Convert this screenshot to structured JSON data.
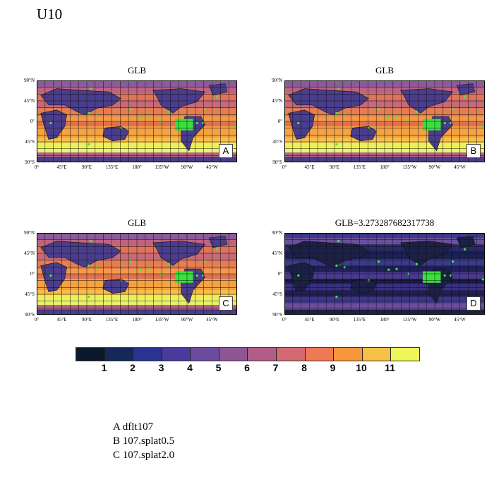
{
  "figure_title": "U10",
  "panels": [
    {
      "title": "GLB",
      "badge": "A"
    },
    {
      "title": "GLB",
      "badge": "B"
    },
    {
      "title": "GLB",
      "badge": "C"
    },
    {
      "title": "GLB=3.273287682317738",
      "badge": "D"
    }
  ],
  "lat_labels": [
    "90°N",
    "45°N",
    "0°",
    "45°S",
    "90°S"
  ],
  "lon_labels": [
    "0°",
    "45°E",
    "90°E",
    "135°E",
    "180°",
    "135°W",
    "90°W",
    "45°W"
  ],
  "colorbar": {
    "colors": [
      "#0b1a2a",
      "#14285a",
      "#2a3390",
      "#4a3a9e",
      "#6c4a9c",
      "#8e5595",
      "#b05e88",
      "#d26a72",
      "#ed7a52",
      "#f7973c",
      "#f6bf45",
      "#eff65a"
    ],
    "labels": [
      "1",
      "2",
      "3",
      "4",
      "5",
      "6",
      "7",
      "8",
      "9",
      "10",
      "11"
    ]
  },
  "legend": [
    "A  dflt107",
    "B  107.splat0.5",
    "C  107.splat2.0"
  ]
}
